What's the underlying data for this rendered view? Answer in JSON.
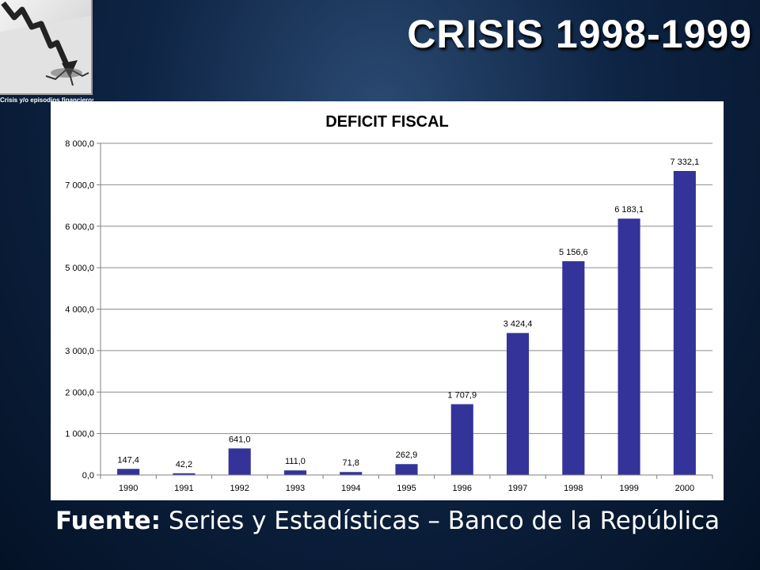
{
  "slide": {
    "title": "CRISIS 1998-1999",
    "logo_caption": "Crisis y/o episodios financieros en",
    "source_label": "Fuente:",
    "source_text": " Series y Estadísticas – Banco de la República"
  },
  "colors": {
    "bar": "#333399",
    "grid": "#8c8c8c",
    "background_dark": "#0e2444"
  },
  "chart_data": {
    "type": "bar",
    "title": "DEFICIT FISCAL",
    "categories": [
      "1990",
      "1991",
      "1992",
      "1993",
      "1994",
      "1995",
      "1996",
      "1997",
      "1998",
      "1999",
      "2000"
    ],
    "values": [
      147.4,
      42.2,
      641.0,
      111.0,
      71.8,
      262.9,
      1707.9,
      3424.4,
      5156.6,
      6183.1,
      7332.1
    ],
    "value_labels": [
      "147,4",
      "42,2",
      "641,0",
      "111,0",
      "71,8",
      "262,9",
      "1 707,9",
      "3 424,4",
      "5 156,6",
      "6 183,1",
      "7 332,1"
    ],
    "ylim": [
      0,
      8000
    ],
    "yticks": [
      0,
      1000,
      2000,
      3000,
      4000,
      5000,
      6000,
      7000,
      8000
    ],
    "ytick_labels": [
      "0,0",
      "1 000,0",
      "2 000,0",
      "3 000,0",
      "4 000,0",
      "5 000,0",
      "6 000,0",
      "7 000,0",
      "8 000,0"
    ],
    "grid": true,
    "legend": "none"
  }
}
